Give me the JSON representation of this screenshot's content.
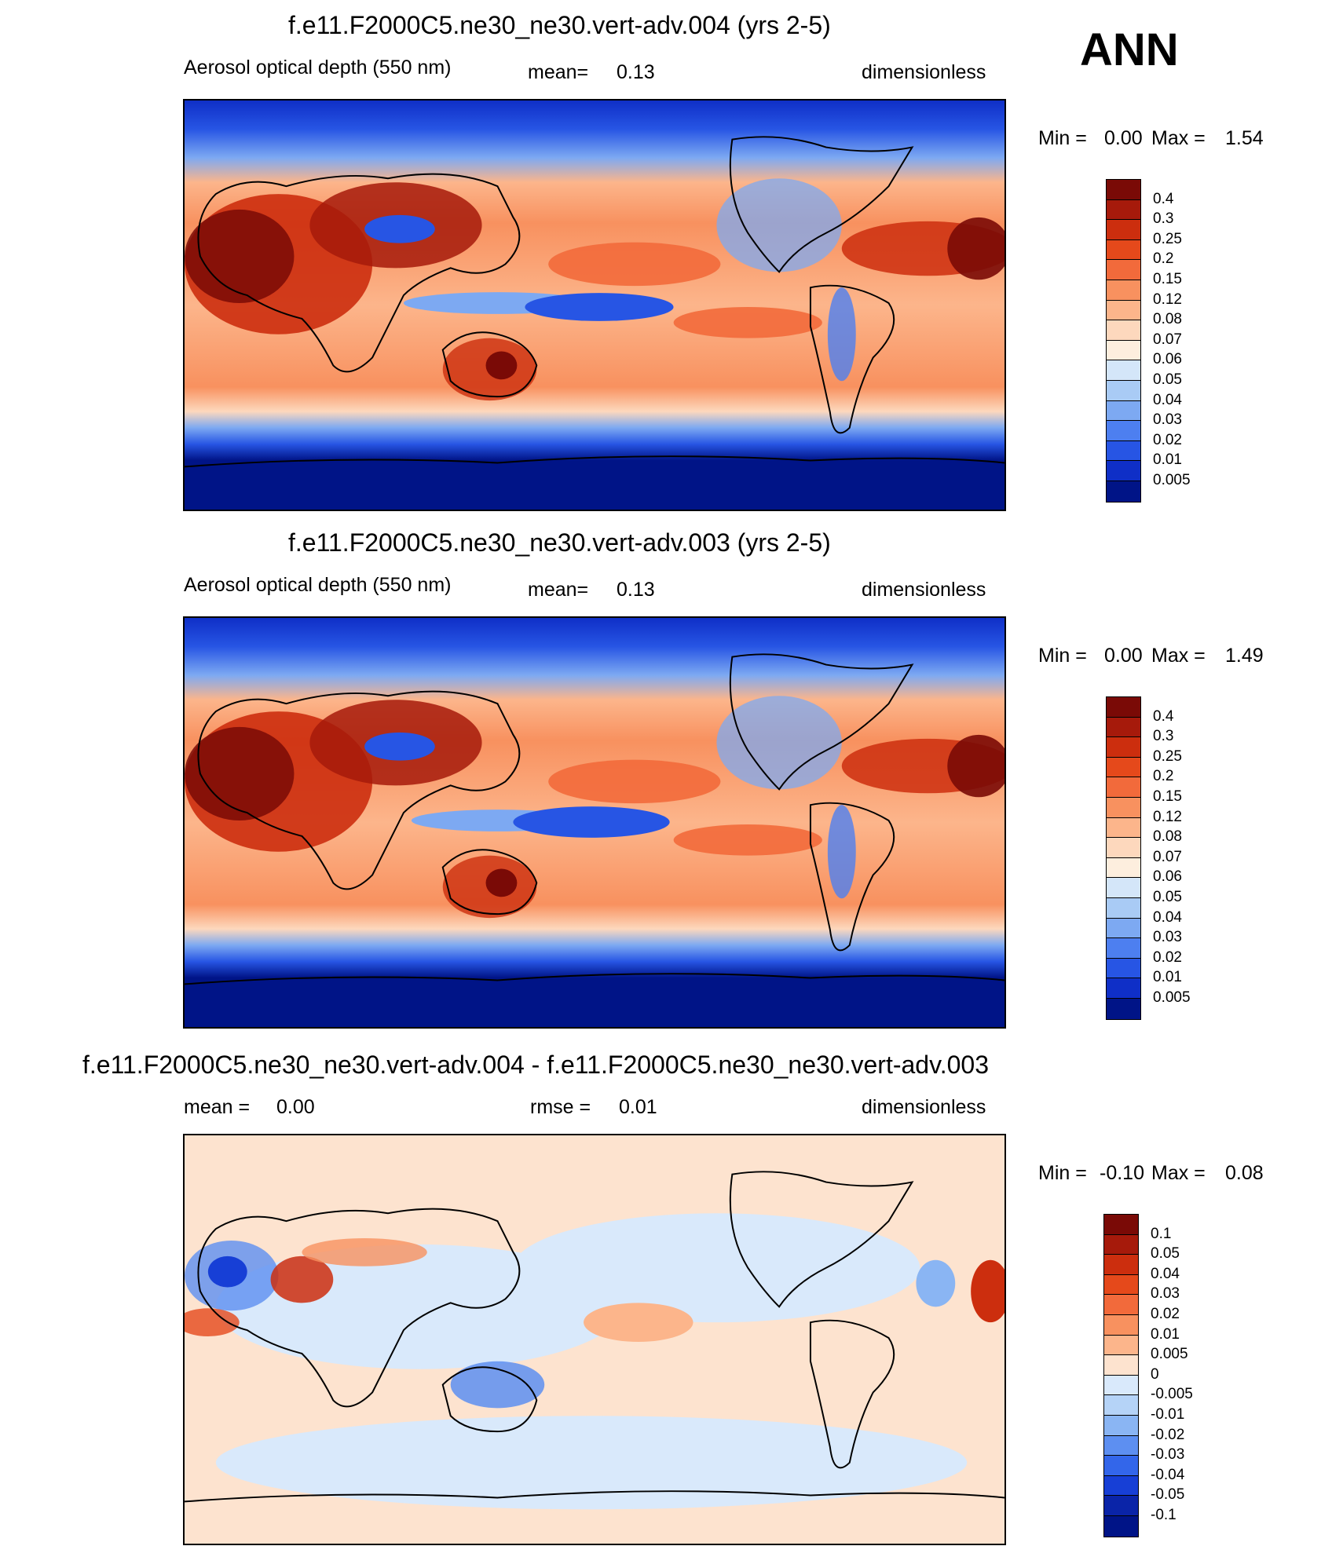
{
  "season_label": "ANN",
  "panels": [
    {
      "title": "f.e11.F2000C5.ne30_ne30.vert-adv.004 (yrs 2-5)",
      "left_label": "Aerosol optical depth (550 nm)",
      "mean_label": "mean=",
      "mean_value": "0.13",
      "units": "dimensionless",
      "min_label": "Min =",
      "min_value": "0.00",
      "max_label": "Max =",
      "max_value": "1.54",
      "colorbar": {
        "levels": [
          "0.4",
          "0.3",
          "0.25",
          "0.2",
          "0.15",
          "0.12",
          "0.08",
          "0.07",
          "0.06",
          "0.05",
          "0.04",
          "0.03",
          "0.02",
          "0.01",
          "0.005"
        ],
        "colors": [
          "#7a0a06",
          "#a61a0b",
          "#cc2e0e",
          "#e5491b",
          "#f26a3b",
          "#f8915f",
          "#fcb58b",
          "#fdd8bd",
          "#fdeede",
          "#d4e6f9",
          "#a9cbf5",
          "#7da9f2",
          "#4d7ff0",
          "#2755e4",
          "#0f2fc7",
          "#001487"
        ]
      }
    },
    {
      "title": "f.e11.F2000C5.ne30_ne30.vert-adv.003 (yrs 2-5)",
      "left_label": "Aerosol optical depth (550 nm)",
      "mean_label": "mean=",
      "mean_value": "0.13",
      "units": "dimensionless",
      "min_label": "Min =",
      "min_value": "0.00",
      "max_label": "Max =",
      "max_value": "1.49",
      "colorbar": {
        "levels": [
          "0.4",
          "0.3",
          "0.25",
          "0.2",
          "0.15",
          "0.12",
          "0.08",
          "0.07",
          "0.06",
          "0.05",
          "0.04",
          "0.03",
          "0.02",
          "0.01",
          "0.005"
        ],
        "colors": [
          "#7a0a06",
          "#a61a0b",
          "#cc2e0e",
          "#e5491b",
          "#f26a3b",
          "#f8915f",
          "#fcb58b",
          "#fdd8bd",
          "#fdeede",
          "#d4e6f9",
          "#a9cbf5",
          "#7da9f2",
          "#4d7ff0",
          "#2755e4",
          "#0f2fc7",
          "#001487"
        ]
      }
    },
    {
      "title": "f.e11.F2000C5.ne30_ne30.vert-adv.004 - f.e11.F2000C5.ne30_ne30.vert-adv.003",
      "left_label": "mean =",
      "left_value": "0.00",
      "mid_label": "rmse =",
      "mid_value": "0.01",
      "units": "dimensionless",
      "min_label": "Min =",
      "min_value": "-0.10",
      "max_label": "Max =",
      "max_value": "0.08",
      "colorbar": {
        "levels": [
          "0.1",
          "0.05",
          "0.04",
          "0.03",
          "0.02",
          "0.01",
          "0.005",
          "0",
          "-0.005",
          "-0.01",
          "-0.02",
          "-0.03",
          "-0.04",
          "-0.05",
          "-0.1"
        ],
        "colors": [
          "#7a0a06",
          "#a61a0b",
          "#cc2e0e",
          "#e5491b",
          "#f26a3b",
          "#f8915f",
          "#fcb58b",
          "#fde3cf",
          "#d9e9fb",
          "#b5d3f7",
          "#8ab5f3",
          "#5d8ff1",
          "#3366ea",
          "#173fd6",
          "#0a24a8",
          "#001487"
        ]
      }
    }
  ]
}
